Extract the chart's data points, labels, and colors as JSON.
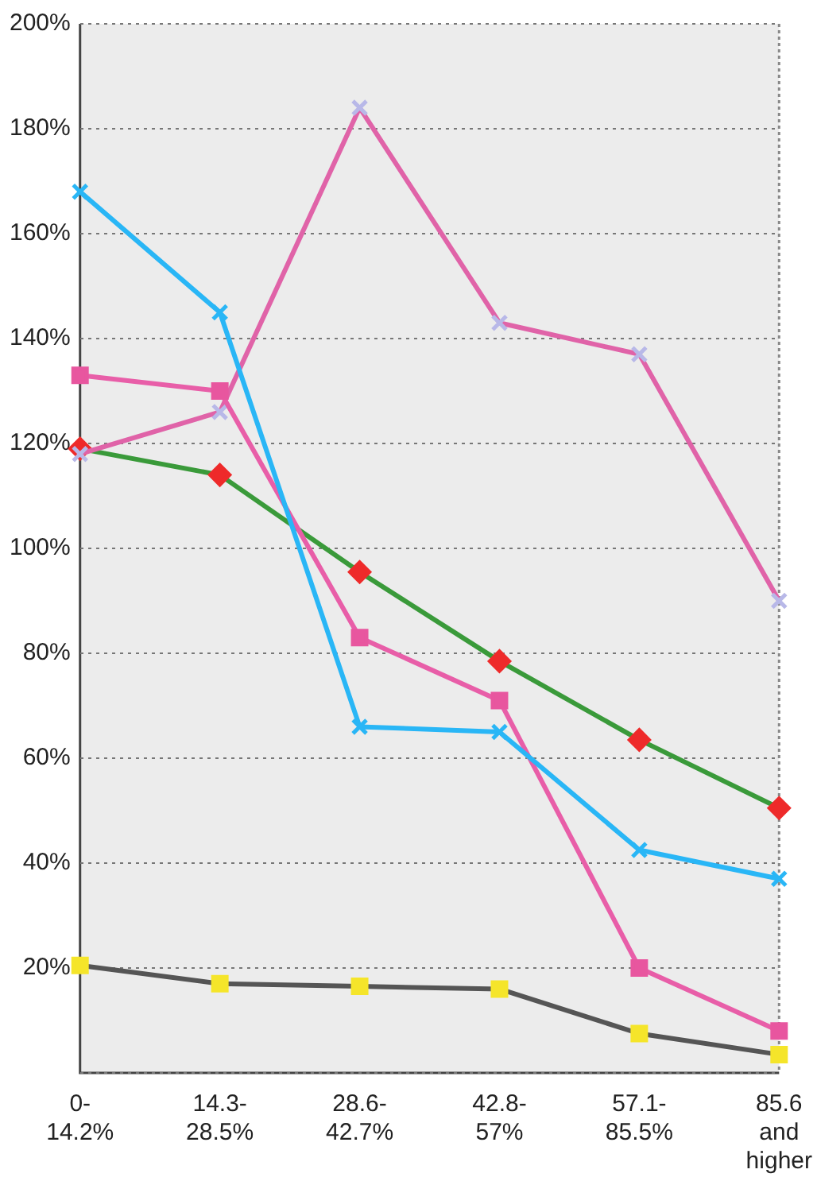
{
  "chart_data": {
    "type": "line",
    "categories": [
      "0- 14.2%",
      "14.3- 28.5%",
      "28.6- 42.7%",
      "42.8- 57%",
      "57.1- 85.5%",
      "85.6 and higher"
    ],
    "ylim": [
      0,
      200
    ],
    "yticks": [
      {
        "value": 0,
        "label": null
      },
      {
        "value": 20,
        "label": "20%"
      },
      {
        "value": 40,
        "label": "40%"
      },
      {
        "value": 60,
        "label": "60%"
      },
      {
        "value": 80,
        "label": "80%"
      },
      {
        "value": 100,
        "label": "100%"
      },
      {
        "value": 120,
        "label": "120%"
      },
      {
        "value": 140,
        "label": "140%"
      },
      {
        "value": 160,
        "label": "160%"
      },
      {
        "value": 180,
        "label": "180%"
      },
      {
        "value": 200,
        "label": "200%"
      }
    ],
    "grid": "y",
    "legend": false,
    "series": [
      {
        "color": "#29b6f6",
        "marker": "cross",
        "colors": [
          "#29b6f6",
          "#29b6f6",
          "#29b6f6",
          "#29b6f6",
          "#29b6f6",
          "#29b6f6"
        ],
        "values": [
          168,
          145,
          66,
          65,
          42.5,
          37
        ]
      },
      {
        "color": "#e85ea8",
        "marker": "square",
        "colors": [
          "#e8569f",
          "#e8569f",
          "#e8569f",
          "#e8569f",
          "#e8569f",
          "#e8569f"
        ],
        "values": [
          133,
          130,
          83,
          71,
          20,
          8
        ]
      },
      {
        "color": "#e063a8",
        "marker": "cross",
        "colors": [
          "#b8b8e8",
          "#b8b8e8",
          "#b8b8e8",
          "#b8b8e8",
          "#b8b8e8",
          "#b8b8e8"
        ],
        "values": [
          118,
          126,
          184,
          143,
          137,
          90
        ]
      },
      {
        "color": "#3a9a3a",
        "marker": "diamond",
        "colors": [
          "#ee2a2a",
          "#ee2a2a",
          "#ee2a2a",
          "#ee2a2a",
          "#ee2a2a",
          "#ee2a2a"
        ],
        "values": [
          119,
          114,
          95.5,
          78.5,
          63.5,
          50.5
        ]
      },
      {
        "color": "#555555",
        "marker": "square",
        "colors": [
          "#f5e52a",
          "#f5e52a",
          "#f5e52a",
          "#f5e52a",
          "#f5e52a",
          "#f5e52a"
        ],
        "values": [
          20.5,
          17,
          16.5,
          16,
          7.5,
          3.5
        ]
      }
    ]
  }
}
